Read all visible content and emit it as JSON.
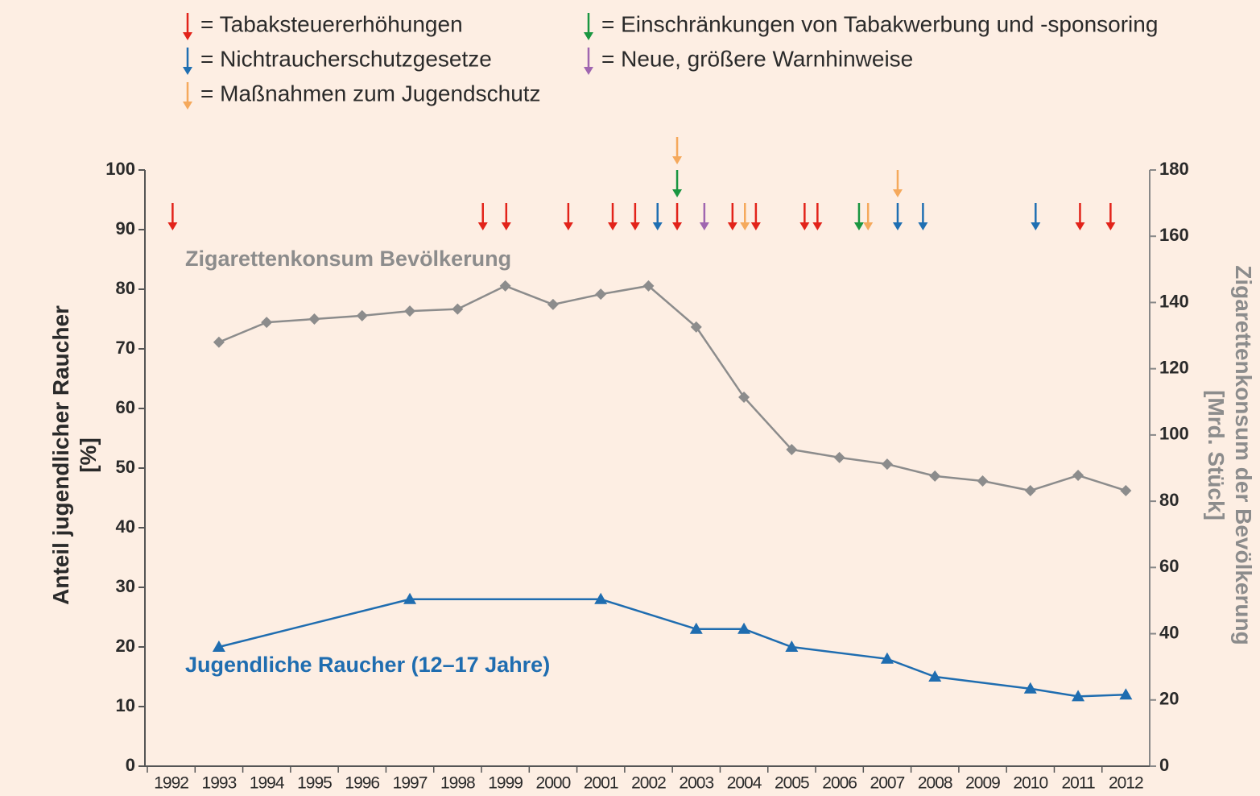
{
  "chart_data": {
    "type": "line",
    "legend": [
      {
        "label": "= Tabaksteuererhöhungen",
        "color": "#e2231a"
      },
      {
        "label": "= Einschränkungen von Tabakwerbung und -sponsoring",
        "color": "#1a9641"
      },
      {
        "label": "= Nichtraucherschutzgesetze",
        "color": "#1f6fb2"
      },
      {
        "label": "= Neue, größere Warnhinweise",
        "color": "#a066b0"
      },
      {
        "label": "= Maßnahmen zum Jugendschutz",
        "color": "#f5a95c"
      }
    ],
    "events": [
      {
        "x": 1992.03,
        "type": 0
      },
      {
        "x": 1998.53,
        "type": 0
      },
      {
        "x": 1999.02,
        "type": 0
      },
      {
        "x": 2000.32,
        "type": 0
      },
      {
        "x": 2001.25,
        "type": 0
      },
      {
        "x": 2001.72,
        "type": 0
      },
      {
        "x": 2002.19,
        "type": 2
      },
      {
        "x": 2002.6,
        "type": 0
      },
      {
        "x": 2002.6,
        "type": 1
      },
      {
        "x": 2002.6,
        "type": 4
      },
      {
        "x": 2003.17,
        "type": 3
      },
      {
        "x": 2003.76,
        "type": 0
      },
      {
        "x": 2004.02,
        "type": 4
      },
      {
        "x": 2004.25,
        "type": 0
      },
      {
        "x": 2005.27,
        "type": 0
      },
      {
        "x": 2005.54,
        "type": 0
      },
      {
        "x": 2006.41,
        "type": 1
      },
      {
        "x": 2006.6,
        "type": 4
      },
      {
        "x": 2007.22,
        "type": 2
      },
      {
        "x": 2007.22,
        "type": 4
      },
      {
        "x": 2007.75,
        "type": 2
      },
      {
        "x": 2010.11,
        "type": 2
      },
      {
        "x": 2011.04,
        "type": 0
      },
      {
        "x": 2011.68,
        "type": 0
      }
    ],
    "series": [
      {
        "name": "Jugendliche Raucher (12–17 Jahre)",
        "color": "#1f6db0",
        "marker": "triangle",
        "axis": "y",
        "x": [
          1993,
          1997,
          2001,
          2003,
          2004,
          2005,
          2007,
          2008,
          2010,
          2011,
          2012
        ],
        "values": [
          20,
          28,
          28,
          23,
          23,
          20,
          18,
          15,
          13,
          11.7,
          12
        ]
      },
      {
        "name": "Zigarettenkonsum Bevölkerung",
        "color": "#8c8c8c",
        "marker": "diamond",
        "axis": "y2",
        "x": [
          1993,
          1994,
          1995,
          1996,
          1997,
          1998,
          1999,
          2000,
          2001,
          2002,
          2003,
          2004,
          2005,
          2006,
          2007,
          2008,
          2009,
          2010,
          2011,
          2012
        ],
        "values": [
          128,
          134,
          135,
          136,
          137.4,
          138,
          145,
          139.4,
          142.5,
          145,
          132.6,
          111.4,
          95.6,
          93.2,
          91.2,
          87.6,
          86.1,
          83.2,
          87.8,
          83.2
        ]
      }
    ],
    "ylabel": [
      "Anteil jugendlicher Raucher",
      "[%]"
    ],
    "y2label": [
      "Zigarettenkonsum der Bevölkerung",
      "[Mrd. Stück]"
    ],
    "xlim": [
      1991.45,
      2012.5
    ],
    "xticks": [
      1992,
      1993,
      1994,
      1995,
      1996,
      1997,
      1998,
      1999,
      2000,
      2001,
      2002,
      2003,
      2004,
      2005,
      2006,
      2007,
      2008,
      2009,
      2010,
      2011,
      2012
    ],
    "ylim": [
      0,
      100
    ],
    "yticks": [
      0,
      10,
      20,
      30,
      40,
      50,
      60,
      70,
      80,
      90,
      100
    ],
    "y2lim": [
      0,
      180
    ],
    "y2ticks": [
      0,
      20,
      40,
      60,
      80,
      100,
      120,
      140,
      160,
      180
    ]
  }
}
